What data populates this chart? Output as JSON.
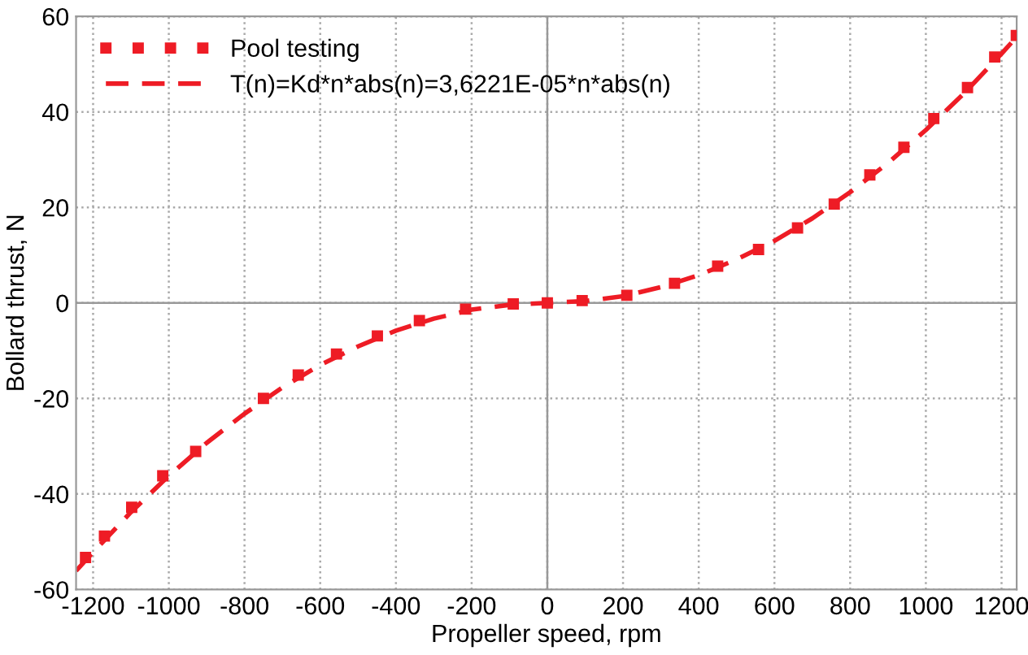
{
  "chart_data": {
    "type": "scatter",
    "xlabel": "Propeller speed, rpm",
    "ylabel": "Bollard thrust, N",
    "xlim": [
      -1245,
      1240
    ],
    "ylim": [
      -60,
      60
    ],
    "xticks": [
      -1200,
      -1000,
      -800,
      -600,
      -400,
      -200,
      0,
      200,
      400,
      600,
      800,
      1000,
      1200
    ],
    "yticks": [
      -60,
      -40,
      -20,
      0,
      20,
      40,
      60
    ],
    "grid": true,
    "legend": "top left",
    "series": [
      {
        "name": "Pool testing",
        "color": "#ee1c25",
        "marker": "square",
        "x": [
          -1220,
          -1170,
          -1098,
          -1016,
          -929,
          -750,
          -658,
          -557,
          -449,
          -338,
          -216,
          -90,
          0,
          92,
          210,
          336,
          450,
          558,
          661,
          758,
          852,
          942,
          1021,
          1110,
          1182,
          1239
        ],
        "values": [
          -53.3,
          -48.8,
          -42.8,
          -36.2,
          -31.1,
          -20.0,
          -15.1,
          -10.7,
          -6.9,
          -3.7,
          -1.3,
          -0.2,
          0,
          0.5,
          1.6,
          4.1,
          7.7,
          11.2,
          15.7,
          20.7,
          26.8,
          32.6,
          38.6,
          45.1,
          51.5,
          56.0
        ]
      },
      {
        "name": "T(n)=Kd*n*abs(n)=3,6221E-05*n*abs(n)",
        "type": "line",
        "color": "#ee1c25",
        "line_style": "dashed",
        "x": [
          -1245,
          -1200,
          -1100,
          -1000,
          -900,
          -800,
          -700,
          -600,
          -500,
          -400,
          -300,
          -200,
          -100,
          0,
          100,
          200,
          300,
          400,
          500,
          600,
          700,
          800,
          900,
          1000,
          1100,
          1200,
          1240
        ],
        "values": [
          -56.1,
          -52.2,
          -43.8,
          -36.2,
          -29.3,
          -23.2,
          -17.7,
          -13.0,
          -9.1,
          -5.8,
          -3.3,
          -1.4,
          -0.4,
          0,
          0.4,
          1.4,
          3.3,
          5.8,
          9.1,
          13.0,
          17.7,
          23.2,
          29.3,
          36.2,
          43.8,
          52.2,
          55.7
        ]
      }
    ]
  }
}
